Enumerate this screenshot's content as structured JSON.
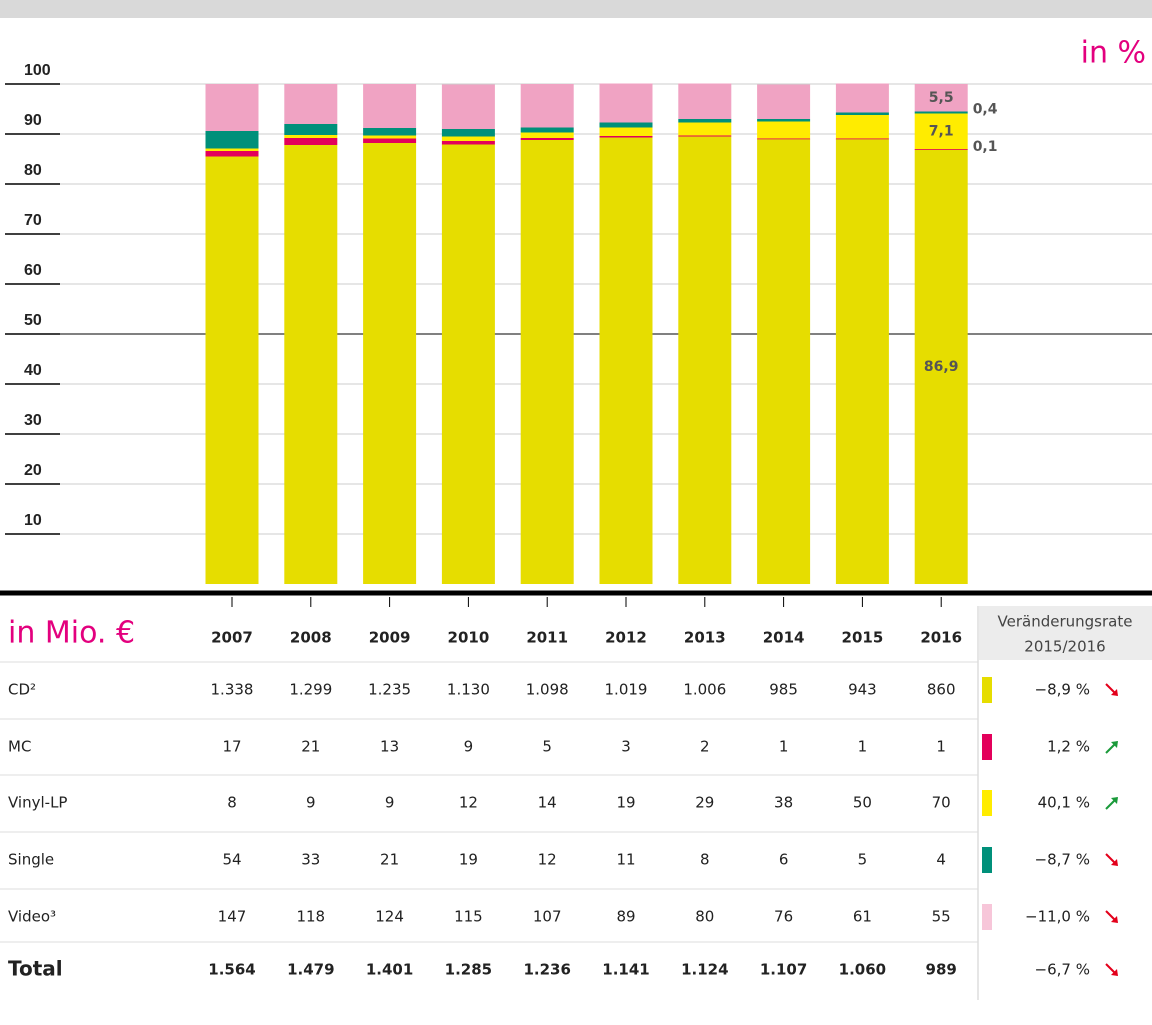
{
  "chart_data": {
    "type": "stacked_bar",
    "y_label": "in %",
    "categories": [
      "2007",
      "2008",
      "2009",
      "2010",
      "2011",
      "2012",
      "2013",
      "2014",
      "2015",
      "2016"
    ],
    "series": [
      {
        "name": "CD",
        "color": "#e6dd00",
        "values": [
          85.5,
          87.8,
          88.2,
          87.9,
          88.8,
          89.3,
          89.5,
          89.0,
          89.0,
          86.9
        ],
        "value_labels": [
          null,
          null,
          null,
          null,
          null,
          null,
          null,
          null,
          null,
          "86,9"
        ]
      },
      {
        "name": "MC",
        "color": "#e3005b",
        "values": [
          1.1,
          1.4,
          0.9,
          0.7,
          0.4,
          0.3,
          0.2,
          0.1,
          0.1,
          0.1
        ],
        "value_labels": [
          null,
          null,
          null,
          null,
          null,
          null,
          null,
          null,
          null,
          "0,1"
        ]
      },
      {
        "name": "Vinyl-LP",
        "color": "#ffec00",
        "values": [
          0.5,
          0.6,
          0.6,
          0.9,
          1.1,
          1.7,
          2.6,
          3.4,
          4.7,
          7.1
        ],
        "value_labels": [
          null,
          null,
          null,
          null,
          null,
          null,
          null,
          null,
          null,
          "7,1"
        ]
      },
      {
        "name": "Single",
        "color": "#00907a",
        "values": [
          3.5,
          2.2,
          1.5,
          1.5,
          1.0,
          1.0,
          0.7,
          0.5,
          0.5,
          0.4
        ],
        "value_labels": [
          null,
          null,
          null,
          null,
          null,
          null,
          null,
          null,
          null,
          "0,4"
        ]
      },
      {
        "name": "Video",
        "color": "#f0a3c3",
        "values": [
          9.4,
          8.0,
          8.8,
          8.9,
          8.7,
          7.8,
          7.1,
          6.9,
          5.8,
          5.5
        ],
        "value_labels": [
          null,
          null,
          null,
          null,
          null,
          null,
          null,
          null,
          null,
          "5,5"
        ]
      }
    ],
    "ylim": [
      0,
      100
    ],
    "yticks": [
      10,
      20,
      30,
      40,
      50,
      60,
      70,
      80,
      90,
      100
    ],
    "grid": true,
    "reference_line": 50
  },
  "table": {
    "unit_label": "in Mio. €",
    "change_header": [
      "Veränderungsrate",
      "2015/2016"
    ],
    "rows": [
      {
        "label": "CD²",
        "swatch": "#e6dd00",
        "values": [
          "1.338",
          "1.299",
          "1.235",
          "1.130",
          "1.098",
          "1.019",
          "1.006",
          "985",
          "943",
          "860"
        ],
        "change": "−8,9 %",
        "trend": "down"
      },
      {
        "label": "MC",
        "swatch": "#e3005b",
        "values": [
          "17",
          "21",
          "13",
          "9",
          "5",
          "3",
          "2",
          "1",
          "1",
          "1"
        ],
        "change": "1,2 %",
        "trend": "up"
      },
      {
        "label": "Vinyl-LP",
        "swatch": "#ffec00",
        "values": [
          "8",
          "9",
          "9",
          "12",
          "14",
          "19",
          "29",
          "38",
          "50",
          "70"
        ],
        "change": "40,1 %",
        "trend": "up"
      },
      {
        "label": "Single",
        "swatch": "#00907a",
        "values": [
          "54",
          "33",
          "21",
          "19",
          "12",
          "11",
          "8",
          "6",
          "5",
          "4"
        ],
        "change": "−8,7 %",
        "trend": "down"
      },
      {
        "label": "Video³",
        "swatch": "#f7c6d9",
        "values": [
          "147",
          "118",
          "124",
          "115",
          "107",
          "89",
          "80",
          "76",
          "61",
          "55"
        ],
        "change": "−11,0 %",
        "trend": "down"
      },
      {
        "label": "Total",
        "swatch": null,
        "values": [
          "1.564",
          "1.479",
          "1.401",
          "1.285",
          "1.236",
          "1.141",
          "1.124",
          "1.107",
          "1.060",
          "989"
        ],
        "change": "−6,7 %",
        "trend": "down",
        "bold": true
      }
    ]
  }
}
